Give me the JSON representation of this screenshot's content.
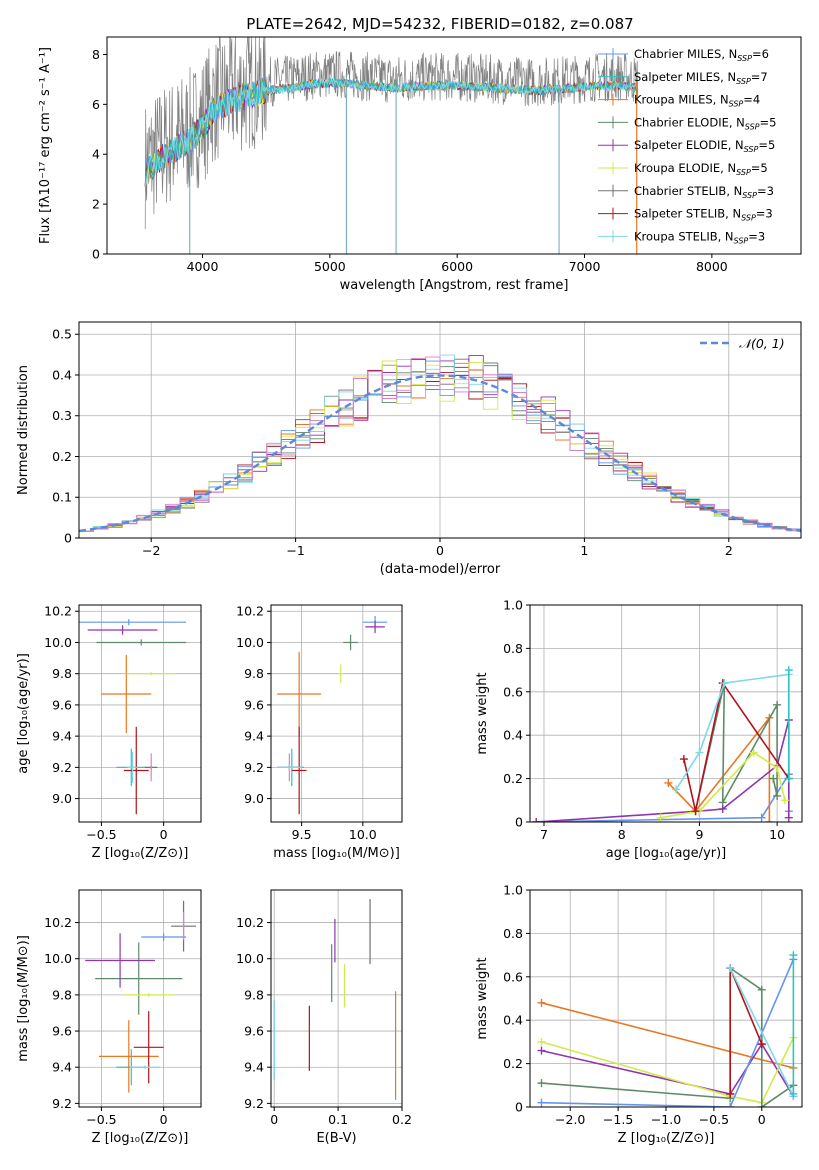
{
  "title": "PLATE=2642, MJD=54232, FIBERID=0182, z=0.087",
  "series_colors": [
    "#6495ed",
    "#2ec4c4",
    "#e87722",
    "#5f8a6a",
    "#8e35b0",
    "#d4e94a",
    "#707070",
    "#b0141c",
    "#7dd8e8"
  ],
  "chart_data": [
    {
      "type": "line",
      "name": "spectrum",
      "xlabel": "wavelength [Angstrom, rest frame]",
      "ylabel": "Flux [fλ10⁻¹⁷ erg cm⁻² s⁻¹ A⁻¹]",
      "xlim": [
        3250,
        8700
      ],
      "ylim": [
        0,
        8.7
      ],
      "xticks": [
        4000,
        5000,
        6000,
        7000,
        8000
      ],
      "yticks": [
        0,
        2,
        4,
        6,
        8
      ],
      "grid": false,
      "legend_placement": "right",
      "legend": [
        {
          "label": "Chabrier MILES, N",
          "sub": "SSP",
          "tail": "=6"
        },
        {
          "label": "Salpeter MILES, N",
          "sub": "SSP",
          "tail": "=7"
        },
        {
          "label": "Kroupa MILES, N",
          "sub": "SSP",
          "tail": "=4"
        },
        {
          "label": "Chabrier ELODIE, N",
          "sub": "SSP",
          "tail": "=5"
        },
        {
          "label": "Salpeter ELODIE, N",
          "sub": "SSP",
          "tail": "=5"
        },
        {
          "label": "Kroupa ELODIE, N",
          "sub": "SSP",
          "tail": "=5"
        },
        {
          "label": "Chabrier STELIB, N",
          "sub": "SSP",
          "tail": "=3"
        },
        {
          "label": "Salpeter STELIB, N",
          "sub": "SSP",
          "tail": "=3"
        },
        {
          "label": "Kroupa STELIB, N",
          "sub": "SSP",
          "tail": "=3"
        }
      ],
      "series_envelope": {
        "x": [
          3550,
          3700,
          3900,
          4000,
          4100,
          4300,
          4500,
          4700,
          4900,
          5100,
          5300,
          5500,
          5800,
          6000,
          6300,
          6600,
          6900,
          7100,
          7300,
          7400
        ],
        "y": [
          3.6,
          4.3,
          4.9,
          5.4,
          6.2,
          6.6,
          6.9,
          7.0,
          7.2,
          7.2,
          7.1,
          7.0,
          7.1,
          7.1,
          7.0,
          6.9,
          7.0,
          7.1,
          7.1,
          7.0
        ]
      },
      "dips": [
        {
          "x": 3900,
          "y": 0
        },
        {
          "x": 5130,
          "y": 0
        },
        {
          "x": 5520,
          "y": 0
        },
        {
          "x": 6800,
          "y": 0
        }
      ]
    },
    {
      "type": "line",
      "name": "residual-histogram",
      "xlabel": "(data-model)/error",
      "ylabel": "Normed distribution",
      "xlim": [
        -2.5,
        2.5
      ],
      "ylim": [
        0,
        0.53
      ],
      "xticks": [
        -2,
        -1,
        0,
        1,
        2
      ],
      "yticks": [
        0.0,
        0.1,
        0.2,
        0.3,
        0.4,
        0.5
      ],
      "grid": true,
      "legend_placement": "top-right",
      "legend": [
        {
          "label": "𝒩(0, 1)"
        }
      ],
      "gaussian": {
        "mean": 0,
        "sigma": 1
      }
    },
    {
      "type": "scatter",
      "name": "age-vs-Z",
      "xlabel": "Z [log₁₀(Z/Z⊙)]",
      "ylabel": "age  [log₁₀(age/yr)]",
      "xlim": [
        -0.68,
        0.3
      ],
      "ylim": [
        8.85,
        10.24
      ],
      "xticks": [
        -0.5,
        0.0
      ],
      "yticks": [
        9.0,
        9.2,
        9.4,
        9.6,
        9.8,
        10.0,
        10.2
      ],
      "grid": true,
      "points": [
        {
          "x": -0.28,
          "y": 10.13,
          "xerr": 0.46,
          "yerr": 0.02,
          "c": 0
        },
        {
          "x": -0.26,
          "y": 9.2,
          "xerr": 0.12,
          "yerr": 0.12,
          "c": 1
        },
        {
          "x": -0.3,
          "y": 9.67,
          "xerr": 0.2,
          "yerr": 0.25,
          "c": 2
        },
        {
          "x": -0.18,
          "y": 10.0,
          "xerr": 0.36,
          "yerr": 0.02,
          "c": 3
        },
        {
          "x": -0.33,
          "y": 10.08,
          "xerr": 0.28,
          "yerr": 0.03,
          "c": 4
        },
        {
          "x": -0.1,
          "y": 9.8,
          "xerr": 0.2,
          "yerr": 0.01,
          "c": 5
        },
        {
          "x": -0.1,
          "y": 9.2,
          "xerr": 0.05,
          "yerr": 0.01,
          "c": 6
        },
        {
          "x": -0.22,
          "y": 9.18,
          "xerr": 0.1,
          "yerr": 0.28,
          "c": 7
        },
        {
          "x": -0.25,
          "y": 9.2,
          "xerr": 0.04,
          "yerr": 0.1,
          "c": 8
        }
      ]
    },
    {
      "type": "scatter",
      "name": "age-vs-mass",
      "xlabel": "mass [log₁₀(M/M⊙)]",
      "ylabel": "",
      "xlim": [
        9.25,
        10.32
      ],
      "ylim": [
        8.85,
        10.24
      ],
      "xticks": [
        9.5,
        10.0
      ],
      "yticks": [
        9.0,
        9.2,
        9.4,
        9.6,
        9.8,
        10.0,
        10.2
      ],
      "grid": true,
      "points": [
        {
          "x": 10.1,
          "y": 10.13,
          "xerr": 0.1,
          "yerr": 0.04,
          "c": 0
        },
        {
          "x": 9.42,
          "y": 9.2,
          "xerr": 0.1,
          "yerr": 0.12,
          "c": 1
        },
        {
          "x": 9.48,
          "y": 9.67,
          "xerr": 0.18,
          "yerr": 0.27,
          "c": 2
        },
        {
          "x": 9.9,
          "y": 10.0,
          "xerr": 0.06,
          "yerr": 0.05,
          "c": 3
        },
        {
          "x": 10.1,
          "y": 10.1,
          "xerr": 0.08,
          "yerr": 0.04,
          "c": 4
        },
        {
          "x": 9.82,
          "y": 9.8,
          "xerr": 0.02,
          "yerr": 0.06,
          "c": 5
        },
        {
          "x": 9.4,
          "y": 9.2,
          "xerr": 0.1,
          "yerr": 0.02,
          "c": 6
        },
        {
          "x": 9.48,
          "y": 9.18,
          "xerr": 0.06,
          "yerr": 0.28,
          "c": 7
        },
        {
          "x": 9.4,
          "y": 9.2,
          "xerr": 0.1,
          "yerr": 0.02,
          "c": 8
        }
      ]
    },
    {
      "type": "line",
      "name": "mass-weight-vs-age",
      "xlabel": "age  [log₁₀(age/yr)]",
      "ylabel": "mass weight",
      "xlim": [
        6.82,
        10.32
      ],
      "ylim": [
        0.0,
        1.0
      ],
      "xticks": [
        7,
        8,
        9,
        10
      ],
      "yticks": [
        0.0,
        0.2,
        0.4,
        0.6,
        0.8,
        1.0
      ],
      "grid": true,
      "series": [
        {
          "c": 0,
          "x": [
            6.9,
            9.8,
            10.15,
            10.15
          ],
          "y": [
            0.0,
            0.02,
            0.22,
            0.05
          ]
        },
        {
          "c": 2,
          "x": [
            8.6,
            8.95,
            9.9,
            9.9
          ],
          "y": [
            0.18,
            0.05,
            0.48,
            0.0
          ]
        },
        {
          "c": 3,
          "x": [
            8.95,
            9.32,
            9.3,
            10.0,
            10.0,
            9.95
          ],
          "y": [
            0.05,
            0.64,
            0.09,
            0.54,
            0.12,
            0.2
          ]
        },
        {
          "c": 4,
          "x": [
            6.9,
            9.0,
            9.3,
            10.0,
            10.15,
            10.15
          ],
          "y": [
            0.0,
            0.05,
            0.06,
            0.26,
            0.47,
            0.02
          ]
        },
        {
          "c": 5,
          "x": [
            8.5,
            9.0,
            9.7,
            10.0,
            10.1
          ],
          "y": [
            0.02,
            0.05,
            0.32,
            0.25,
            0.1
          ]
        },
        {
          "c": 7,
          "x": [
            8.8,
            8.95,
            9.3,
            10.15
          ],
          "y": [
            0.29,
            0.05,
            0.64,
            0.2
          ]
        },
        {
          "c": 8,
          "x": [
            8.7,
            9.0,
            9.32,
            10.15
          ],
          "y": [
            0.15,
            0.32,
            0.64,
            0.68
          ]
        },
        {
          "c": 1,
          "x": [
            10.15,
            10.15
          ],
          "y": [
            0.7,
            0.2
          ]
        }
      ]
    },
    {
      "type": "scatter",
      "name": "mass-vs-Z",
      "xlabel": "Z [log₁₀(Z/Z⊙)]",
      "ylabel": "mass [log₁₀(M/M⊙)]",
      "xlim": [
        -0.68,
        0.3
      ],
      "ylim": [
        9.18,
        10.38
      ],
      "xticks": [
        -0.5,
        0.0
      ],
      "yticks": [
        9.2,
        9.4,
        9.6,
        9.8,
        10.0,
        10.2
      ],
      "grid": true,
      "points": [
        {
          "x": 0.0,
          "y": 10.12,
          "xerr": 0.18,
          "yerr": 0.02,
          "c": 0
        },
        {
          "x": -0.26,
          "y": 9.4,
          "xerr": 0.12,
          "yerr": 0.1,
          "c": 1
        },
        {
          "x": -0.28,
          "y": 9.46,
          "xerr": 0.24,
          "yerr": 0.2,
          "c": 2
        },
        {
          "x": -0.2,
          "y": 9.89,
          "xerr": 0.35,
          "yerr": 0.2,
          "c": 3
        },
        {
          "x": -0.35,
          "y": 9.99,
          "xerr": 0.28,
          "yerr": 0.15,
          "c": 4
        },
        {
          "x": -0.12,
          "y": 9.8,
          "xerr": 0.2,
          "yerr": 0.01,
          "c": 5
        },
        {
          "x": 0.16,
          "y": 10.18,
          "xerr": 0.1,
          "yerr": 0.14,
          "c": 6
        },
        {
          "x": -0.12,
          "y": 9.51,
          "xerr": 0.12,
          "yerr": 0.2,
          "c": 7
        },
        {
          "x": -0.15,
          "y": 9.4,
          "xerr": 0.12,
          "yerr": 0.01,
          "c": 8
        }
      ]
    },
    {
      "type": "scatter",
      "name": "mass-vs-EBV",
      "xlabel": "E(B-V)",
      "ylabel": "",
      "xlim": [
        -0.005,
        0.2
      ],
      "ylim": [
        9.18,
        10.38
      ],
      "xticks": [
        0.0,
        0.1,
        0.2
      ],
      "yticks": [
        9.2,
        9.4,
        9.6,
        9.8,
        10.0,
        10.2
      ],
      "grid": true,
      "points": [
        {
          "x": 0.0,
          "y": 9.55,
          "xerr": 0,
          "yerr": 0.22,
          "c": 0
        },
        {
          "x": 0.0,
          "y": 9.55,
          "xerr": 0,
          "yerr": 0.22,
          "c": 8
        },
        {
          "x": 0.09,
          "y": 9.92,
          "xerr": 0,
          "yerr": 0.16,
          "c": 3
        },
        {
          "x": 0.095,
          "y": 10.1,
          "xerr": 0,
          "yerr": 0.12,
          "c": 4
        },
        {
          "x": 0.11,
          "y": 9.85,
          "xerr": 0,
          "yerr": 0.12,
          "c": 5
        },
        {
          "x": 0.15,
          "y": 10.15,
          "xerr": 0,
          "yerr": 0.18,
          "c": 6
        },
        {
          "x": 0.055,
          "y": 9.56,
          "xerr": 0,
          "yerr": 0.18,
          "c": 7
        },
        {
          "x": 0.19,
          "y": 9.52,
          "xerr": 0,
          "yerr": 0.3,
          "c": 2
        }
      ]
    },
    {
      "type": "line",
      "name": "mass-weight-vs-Z",
      "xlabel": "Z [log₁₀(Z/Z⊙)]",
      "ylabel": "mass weight",
      "xlim": [
        -2.42,
        0.42
      ],
      "ylim": [
        0.0,
        1.0
      ],
      "xticks": [
        -2.0,
        -1.5,
        -1.0,
        -0.5,
        0.0
      ],
      "yticks": [
        0.0,
        0.2,
        0.4,
        0.6,
        0.8,
        1.0
      ],
      "grid": true,
      "series": [
        {
          "c": 2,
          "x": [
            -2.3,
            0.33
          ],
          "y": [
            0.48,
            0.18
          ]
        },
        {
          "c": 4,
          "x": [
            -2.3,
            -0.33,
            0.0,
            0.33
          ],
          "y": [
            0.26,
            0.06,
            0.29,
            0.05
          ]
        },
        {
          "c": 5,
          "x": [
            -2.3,
            -0.33,
            0.0,
            0.33
          ],
          "y": [
            0.3,
            0.05,
            0.02,
            0.32
          ]
        },
        {
          "c": 3,
          "x": [
            -2.3,
            -0.33,
            -0.33,
            0.0,
            0.0,
            0.33
          ],
          "y": [
            0.11,
            0.04,
            0.64,
            0.54,
            0.0,
            0.1
          ]
        },
        {
          "c": 0,
          "x": [
            -2.3,
            -0.33,
            0.33
          ],
          "y": [
            0.02,
            0.0,
            0.68
          ]
        },
        {
          "c": 7,
          "x": [
            -0.33,
            -0.33,
            0.0
          ],
          "y": [
            0.06,
            0.64,
            0.29
          ]
        },
        {
          "c": 8,
          "x": [
            -0.33,
            0.33
          ],
          "y": [
            0.64,
            0.05
          ]
        },
        {
          "c": 1,
          "x": [
            0.33,
            0.33
          ],
          "y": [
            0.7,
            0.06
          ]
        }
      ]
    }
  ]
}
